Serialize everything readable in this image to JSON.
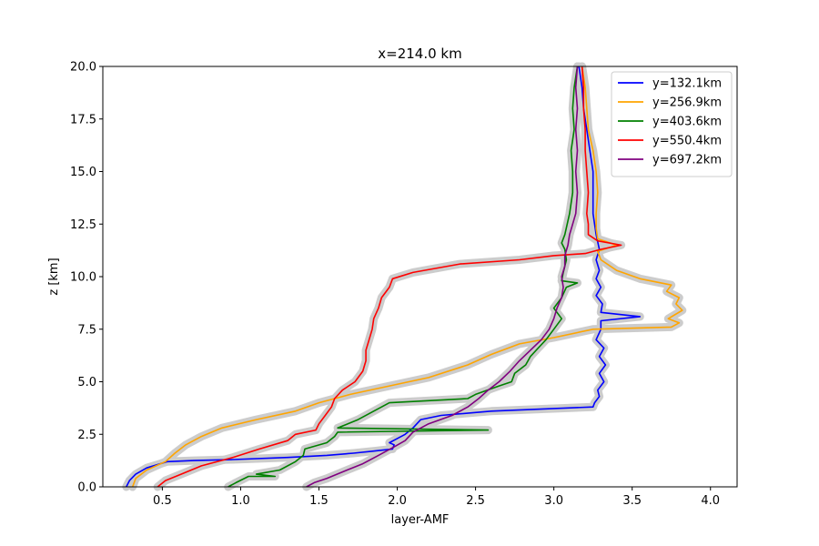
{
  "chart_data": {
    "type": "line",
    "title": "x=214.0 km",
    "xlabel": "layer-AMF",
    "ylabel": "z [km]",
    "xlim": [
      0.12,
      4.17
    ],
    "ylim": [
      0,
      20
    ],
    "xticks": [
      "0.5",
      "1.0",
      "1.5",
      "2.0",
      "2.5",
      "3.0",
      "3.5",
      "4.0"
    ],
    "yticks": [
      "0.0",
      "2.5",
      "5.0",
      "7.5",
      "10.0",
      "12.5",
      "15.0",
      "17.5",
      "20.0"
    ],
    "legend_position": "top-right",
    "grid": false,
    "band_color": "#cccccc",
    "series": [
      {
        "name": "y=132.1km",
        "color": "#0000ff",
        "points": [
          [
            0.27,
            0
          ],
          [
            0.29,
            0.3
          ],
          [
            0.33,
            0.6
          ],
          [
            0.4,
            0.9
          ],
          [
            0.53,
            1.2
          ],
          [
            0.7,
            1.25
          ],
          [
            0.95,
            1.3
          ],
          [
            1.3,
            1.4
          ],
          [
            1.55,
            1.5
          ],
          [
            1.72,
            1.6
          ],
          [
            1.85,
            1.7
          ],
          [
            1.97,
            1.8
          ],
          [
            1.98,
            2.0
          ],
          [
            1.95,
            2.1
          ],
          [
            2.0,
            2.3
          ],
          [
            2.05,
            2.5
          ],
          [
            2.1,
            2.8
          ],
          [
            2.15,
            3.2
          ],
          [
            2.28,
            3.4
          ],
          [
            2.6,
            3.6
          ],
          [
            3.25,
            3.8
          ],
          [
            3.26,
            4.0
          ],
          [
            3.29,
            4.3
          ],
          [
            3.28,
            4.6
          ],
          [
            3.32,
            5.0
          ],
          [
            3.29,
            5.4
          ],
          [
            3.33,
            5.8
          ],
          [
            3.29,
            6.2
          ],
          [
            3.32,
            6.6
          ],
          [
            3.27,
            7.0
          ],
          [
            3.3,
            7.5
          ],
          [
            3.3,
            7.9
          ],
          [
            3.55,
            8.1
          ],
          [
            3.3,
            8.3
          ],
          [
            3.31,
            8.7
          ],
          [
            3.27,
            9.1
          ],
          [
            3.3,
            9.5
          ],
          [
            3.27,
            9.9
          ],
          [
            3.29,
            10.3
          ],
          [
            3.27,
            10.8
          ],
          [
            3.29,
            11.3
          ],
          [
            3.27,
            12.0
          ],
          [
            3.25,
            13.0
          ],
          [
            3.25,
            14.0
          ],
          [
            3.25,
            15.0
          ],
          [
            3.23,
            16.0
          ],
          [
            3.21,
            17.0
          ],
          [
            3.19,
            18.0
          ],
          [
            3.18,
            19.0
          ],
          [
            3.16,
            20.0
          ]
        ]
      },
      {
        "name": "y=256.9km",
        "color": "#ffa500",
        "points": [
          [
            0.31,
            0
          ],
          [
            0.33,
            0.4
          ],
          [
            0.4,
            0.8
          ],
          [
            0.52,
            1.2
          ],
          [
            0.58,
            1.6
          ],
          [
            0.65,
            2.0
          ],
          [
            0.75,
            2.4
          ],
          [
            0.88,
            2.8
          ],
          [
            1.1,
            3.2
          ],
          [
            1.35,
            3.6
          ],
          [
            1.5,
            4.0
          ],
          [
            1.7,
            4.4
          ],
          [
            1.95,
            4.8
          ],
          [
            2.2,
            5.2
          ],
          [
            2.45,
            5.8
          ],
          [
            2.6,
            6.3
          ],
          [
            2.78,
            6.8
          ],
          [
            3.0,
            7.1
          ],
          [
            3.25,
            7.5
          ],
          [
            3.75,
            7.6
          ],
          [
            3.8,
            7.8
          ],
          [
            3.73,
            8.0
          ],
          [
            3.82,
            8.4
          ],
          [
            3.78,
            8.7
          ],
          [
            3.8,
            9.0
          ],
          [
            3.72,
            9.3
          ],
          [
            3.75,
            9.6
          ],
          [
            3.55,
            9.9
          ],
          [
            3.4,
            10.3
          ],
          [
            3.3,
            10.8
          ],
          [
            3.28,
            11.2
          ],
          [
            3.4,
            11.5
          ],
          [
            3.28,
            11.8
          ],
          [
            3.27,
            12.3
          ],
          [
            3.27,
            13.0
          ],
          [
            3.28,
            14.0
          ],
          [
            3.27,
            15.0
          ],
          [
            3.25,
            16.0
          ],
          [
            3.22,
            17.0
          ],
          [
            3.21,
            18.0
          ],
          [
            3.2,
            19.0
          ],
          [
            3.18,
            20.0
          ]
        ]
      },
      {
        "name": "y=403.6km",
        "color": "#008000",
        "points": [
          [
            0.92,
            0
          ],
          [
            0.97,
            0.2
          ],
          [
            1.05,
            0.5
          ],
          [
            1.22,
            0.5
          ],
          [
            1.1,
            0.6
          ],
          [
            1.25,
            0.8
          ],
          [
            1.35,
            1.2
          ],
          [
            1.4,
            1.5
          ],
          [
            1.41,
            1.8
          ],
          [
            1.55,
            2.1
          ],
          [
            1.6,
            2.4
          ],
          [
            1.62,
            2.6
          ],
          [
            2.58,
            2.7
          ],
          [
            1.62,
            2.8
          ],
          [
            1.75,
            3.2
          ],
          [
            1.85,
            3.6
          ],
          [
            1.95,
            4.0
          ],
          [
            2.45,
            4.2
          ],
          [
            2.5,
            4.4
          ],
          [
            2.65,
            4.8
          ],
          [
            2.73,
            5.0
          ],
          [
            2.75,
            5.4
          ],
          [
            2.82,
            5.8
          ],
          [
            2.85,
            6.2
          ],
          [
            2.9,
            6.6
          ],
          [
            2.95,
            7.0
          ],
          [
            3.0,
            7.5
          ],
          [
            3.05,
            8.0
          ],
          [
            3.0,
            8.5
          ],
          [
            3.05,
            9.0
          ],
          [
            3.08,
            9.5
          ],
          [
            3.15,
            9.7
          ],
          [
            3.05,
            9.8
          ],
          [
            3.06,
            10.2
          ],
          [
            3.08,
            10.8
          ],
          [
            3.07,
            11.3
          ],
          [
            3.05,
            11.6
          ],
          [
            3.07,
            12.0
          ],
          [
            3.1,
            13.0
          ],
          [
            3.12,
            14.0
          ],
          [
            3.12,
            15.0
          ],
          [
            3.11,
            16.0
          ],
          [
            3.13,
            17.0
          ],
          [
            3.12,
            18.0
          ],
          [
            3.13,
            19.0
          ],
          [
            3.15,
            20.0
          ]
        ]
      },
      {
        "name": "y=550.4km",
        "color": "#ff0000",
        "points": [
          [
            0.47,
            0
          ],
          [
            0.52,
            0.3
          ],
          [
            0.62,
            0.6
          ],
          [
            0.75,
            1.0
          ],
          [
            0.95,
            1.4
          ],
          [
            1.12,
            1.8
          ],
          [
            1.3,
            2.2
          ],
          [
            1.35,
            2.5
          ],
          [
            1.48,
            2.7
          ],
          [
            1.5,
            3.0
          ],
          [
            1.54,
            3.4
          ],
          [
            1.58,
            3.8
          ],
          [
            1.6,
            4.2
          ],
          [
            1.65,
            4.6
          ],
          [
            1.73,
            5.0
          ],
          [
            1.78,
            5.5
          ],
          [
            1.8,
            6.0
          ],
          [
            1.8,
            6.5
          ],
          [
            1.82,
            7.0
          ],
          [
            1.84,
            7.5
          ],
          [
            1.85,
            8.0
          ],
          [
            1.88,
            8.5
          ],
          [
            1.9,
            9.0
          ],
          [
            1.95,
            9.5
          ],
          [
            1.97,
            9.9
          ],
          [
            2.1,
            10.2
          ],
          [
            2.4,
            10.6
          ],
          [
            2.78,
            10.8
          ],
          [
            3.0,
            11.0
          ],
          [
            3.2,
            11.1
          ],
          [
            3.3,
            11.3
          ],
          [
            3.43,
            11.5
          ],
          [
            3.28,
            11.7
          ],
          [
            3.22,
            12.0
          ],
          [
            3.22,
            12.5
          ],
          [
            3.21,
            13.0
          ],
          [
            3.22,
            14.0
          ],
          [
            3.21,
            15.0
          ],
          [
            3.2,
            16.0
          ],
          [
            3.2,
            17.0
          ],
          [
            3.19,
            18.0
          ],
          [
            3.19,
            19.0
          ],
          [
            3.18,
            20.0
          ]
        ]
      },
      {
        "name": "y=697.2km",
        "color": "#800080",
        "points": [
          [
            1.42,
            0
          ],
          [
            1.47,
            0.2
          ],
          [
            1.55,
            0.4
          ],
          [
            1.68,
            0.8
          ],
          [
            1.78,
            1.1
          ],
          [
            1.88,
            1.5
          ],
          [
            1.98,
            1.9
          ],
          [
            2.05,
            2.2
          ],
          [
            2.1,
            2.6
          ],
          [
            2.2,
            3.0
          ],
          [
            2.35,
            3.4
          ],
          [
            2.45,
            3.8
          ],
          [
            2.52,
            4.2
          ],
          [
            2.58,
            4.6
          ],
          [
            2.65,
            5.0
          ],
          [
            2.72,
            5.5
          ],
          [
            2.78,
            6.0
          ],
          [
            2.85,
            6.5
          ],
          [
            2.92,
            7.0
          ],
          [
            2.97,
            7.5
          ],
          [
            3.0,
            8.0
          ],
          [
            3.02,
            8.5
          ],
          [
            3.05,
            9.0
          ],
          [
            3.06,
            9.5
          ],
          [
            3.05,
            10.0
          ],
          [
            3.07,
            10.5
          ],
          [
            3.07,
            11.0
          ],
          [
            3.09,
            11.5
          ],
          [
            3.1,
            12.0
          ],
          [
            3.12,
            12.5
          ],
          [
            3.14,
            13.0
          ],
          [
            3.15,
            14.0
          ],
          [
            3.14,
            15.0
          ],
          [
            3.15,
            16.0
          ],
          [
            3.14,
            17.0
          ],
          [
            3.15,
            18.0
          ],
          [
            3.14,
            19.0
          ],
          [
            3.15,
            20.0
          ]
        ]
      }
    ]
  }
}
